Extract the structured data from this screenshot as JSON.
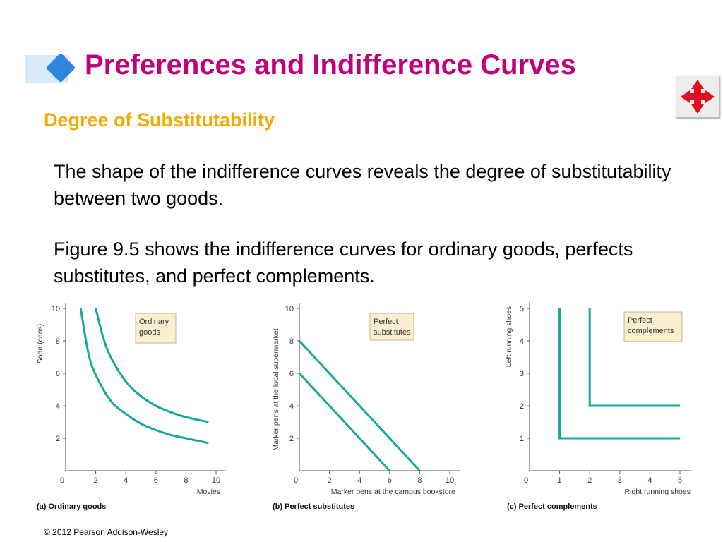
{
  "slide": {
    "title": "Preferences and Indifference Curves",
    "subtitle": "Degree of Substitutability",
    "paragraph_1": "The shape of the indifference curves reveals the degree of substitutability between two goods.",
    "paragraph_2": "Figure 9.5 shows the indifference curves for ordinary goods, perfects substitutes, and perfect complements.",
    "copyright": "© 2012 Pearson Addison-Wesley",
    "nav_icon": "four-way-arrows-icon",
    "colors": {
      "title": "#c0007a",
      "subtitle": "#f5a800",
      "curve": "#16a89c",
      "label_box": "#fbeecf"
    }
  },
  "chart_data": [
    {
      "type": "line",
      "caption": "(a) Ordinary goods",
      "box_label": [
        "Ordinary",
        "goods"
      ],
      "xlabel": "Movies",
      "ylabel": "Soda (cans)",
      "xlim": [
        0,
        10
      ],
      "ylim": [
        0,
        10
      ],
      "xticks": [
        "0",
        "2",
        "4",
        "6",
        "8",
        "10"
      ],
      "yticks": [
        "2",
        "4",
        "6",
        "8",
        "10"
      ],
      "series": [
        {
          "points": [
            [
              1,
              10
            ],
            [
              1.5,
              7.3
            ],
            [
              2,
              5.9
            ],
            [
              3,
              4.3
            ],
            [
              4,
              3.5
            ],
            [
              5,
              2.9
            ],
            [
              6,
              2.5
            ],
            [
              7,
              2.2
            ],
            [
              8,
              2.0
            ],
            [
              9.5,
              1.7
            ]
          ]
        },
        {
          "points": [
            [
              2,
              10
            ],
            [
              2.5,
              8.2
            ],
            [
              3,
              7.0
            ],
            [
              4,
              5.5
            ],
            [
              5,
              4.6
            ],
            [
              6,
              4.0
            ],
            [
              7,
              3.6
            ],
            [
              8,
              3.3
            ],
            [
              9.5,
              3.0
            ]
          ]
        }
      ]
    },
    {
      "type": "line",
      "caption": "(b) Perfect substitutes",
      "box_label": [
        "Perfect",
        "substitutes"
      ],
      "xlabel": "Marker pens at the campus bookstore",
      "ylabel": "Marker pens at the local supermarket",
      "xlim": [
        0,
        10
      ],
      "ylim": [
        0,
        10
      ],
      "xticks": [
        "0",
        "2",
        "4",
        "6",
        "8",
        "10"
      ],
      "yticks": [
        "2",
        "4",
        "6",
        "8",
        "10"
      ],
      "series": [
        {
          "points": [
            [
              0,
              8
            ],
            [
              8,
              0
            ]
          ]
        },
        {
          "points": [
            [
              0,
              6
            ],
            [
              6,
              0
            ]
          ]
        }
      ]
    },
    {
      "type": "line",
      "caption": "(c) Perfect complements",
      "box_label": [
        "Perfect",
        "complements"
      ],
      "xlabel": "Right running shoes",
      "ylabel": "Left running shoes",
      "xlim": [
        0,
        5
      ],
      "ylim": [
        0,
        5
      ],
      "xticks": [
        "0",
        "1",
        "2",
        "3",
        "4",
        "5"
      ],
      "yticks": [
        "1",
        "2",
        "3",
        "4",
        "5"
      ],
      "series": [
        {
          "points": [
            [
              1,
              5
            ],
            [
              1,
              1
            ],
            [
              5,
              1
            ]
          ]
        },
        {
          "points": [
            [
              2,
              5
            ],
            [
              2,
              2
            ],
            [
              5,
              2
            ]
          ]
        }
      ]
    }
  ]
}
